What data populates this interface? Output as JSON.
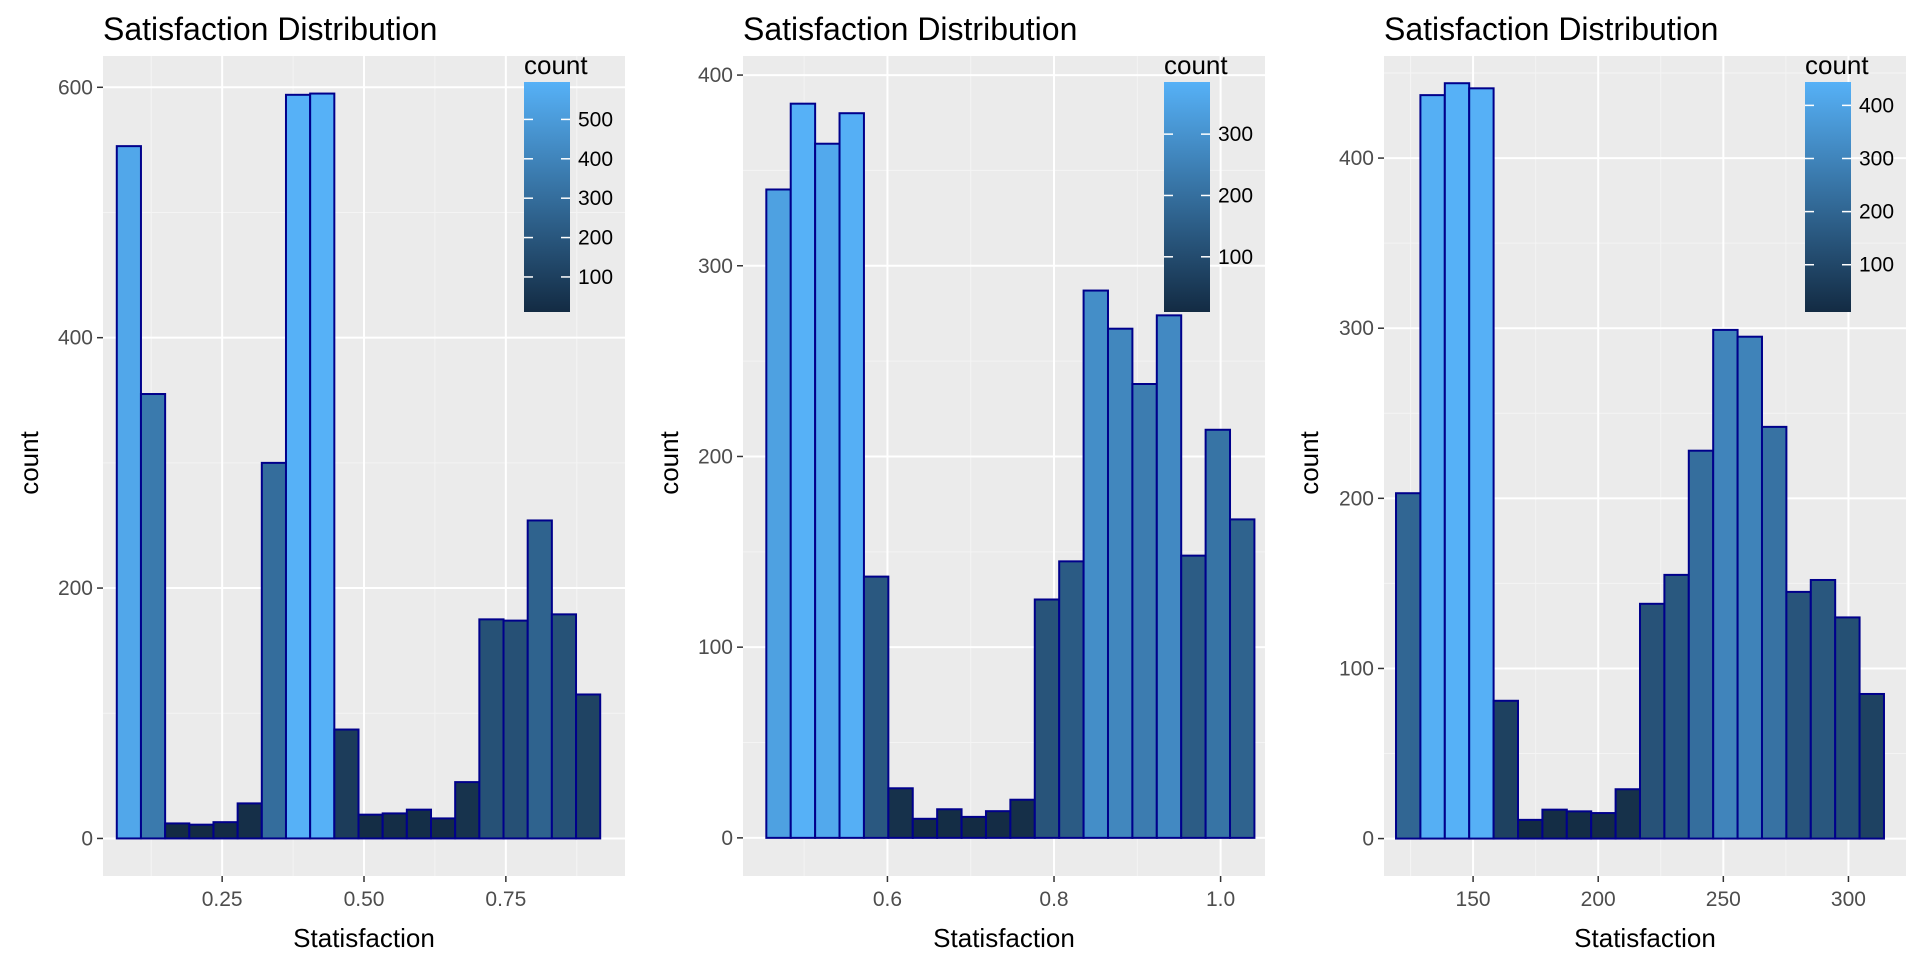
{
  "chart_data": [
    {
      "type": "bar",
      "title": "Satisfaction Distribution",
      "xlabel": "Statisfaction",
      "ylabel": "count",
      "xlim": [
        0.04,
        0.96
      ],
      "ylim": [
        -30,
        625
      ],
      "xticks": [
        0.25,
        0.5,
        0.75
      ],
      "xtick_labels": [
        "0.25",
        "0.50",
        "0.75"
      ],
      "yticks": [
        0,
        200,
        400,
        600
      ],
      "ytick_labels": [
        "0",
        "200",
        "400",
        "600"
      ],
      "bin_width": 0.0426,
      "bin_start": 0.0643,
      "values": [
        553,
        355,
        12,
        11,
        13,
        28,
        300,
        594,
        595,
        87,
        19,
        20,
        23,
        16,
        45,
        175,
        174,
        254,
        179,
        115
      ],
      "legend": {
        "title": "count",
        "labels": [
          "500",
          "400",
          "300",
          "200",
          "100"
        ],
        "values": [
          500,
          400,
          300,
          200,
          100
        ],
        "min": 11,
        "max": 595,
        "position": "top-right"
      }
    },
    {
      "type": "bar",
      "title": "Satisfaction Distribution",
      "xlabel": "Statisfaction",
      "ylabel": "count",
      "xlim": [
        0.4266,
        1.0533
      ],
      "ylim": [
        -20,
        410
      ],
      "xticks": [
        0.6,
        0.8,
        1.0
      ],
      "xtick_labels": [
        "0.6",
        "0.8",
        "1.0"
      ],
      "yticks": [
        0,
        100,
        200,
        300,
        400
      ],
      "ytick_labels": [
        "0",
        "100",
        "200",
        "300",
        "400"
      ],
      "bin_width": 0.0293,
      "bin_start": 0.4546,
      "values": [
        340,
        385,
        364,
        380,
        137,
        26,
        10,
        15,
        11,
        14,
        20,
        125,
        145,
        287,
        267,
        238,
        274,
        148,
        214,
        167
      ],
      "legend": {
        "title": "count",
        "labels": [
          "300",
          "200",
          "100"
        ],
        "values": [
          300,
          200,
          100
        ],
        "min": 10,
        "max": 385,
        "position": "top-right"
      }
    },
    {
      "type": "bar",
      "title": "Satisfaction Distribution",
      "xlabel": "Statisfaction",
      "ylabel": "count",
      "xlim": [
        114.4,
        323.0
      ],
      "ylim": [
        -22,
        460
      ],
      "xticks": [
        150,
        200,
        250,
        300
      ],
      "xtick_labels": [
        "150",
        "200",
        "250",
        "300"
      ],
      "yticks": [
        0,
        100,
        200,
        300,
        400
      ],
      "ytick_labels": [
        "0",
        "100",
        "200",
        "300",
        "400"
      ],
      "bin_width": 9.75,
      "bin_start": 119.2,
      "values": [
        203,
        437,
        444,
        441,
        81,
        11,
        17,
        16,
        15,
        29,
        138,
        155,
        228,
        299,
        295,
        242,
        145,
        152,
        130,
        85
      ],
      "legend": {
        "title": "count",
        "labels": [
          "400",
          "300",
          "200",
          "100"
        ],
        "values": [
          400,
          300,
          200,
          100
        ],
        "min": 11,
        "max": 444,
        "position": "top-right"
      }
    }
  ],
  "colors": {
    "panel_background": "#ebebeb",
    "grid_major": "#ffffff",
    "grid_minor": "#f4f4f4",
    "bar_outline": "#00008b",
    "gradient_low": "#132b43",
    "gradient_high": "#56b1f7"
  }
}
